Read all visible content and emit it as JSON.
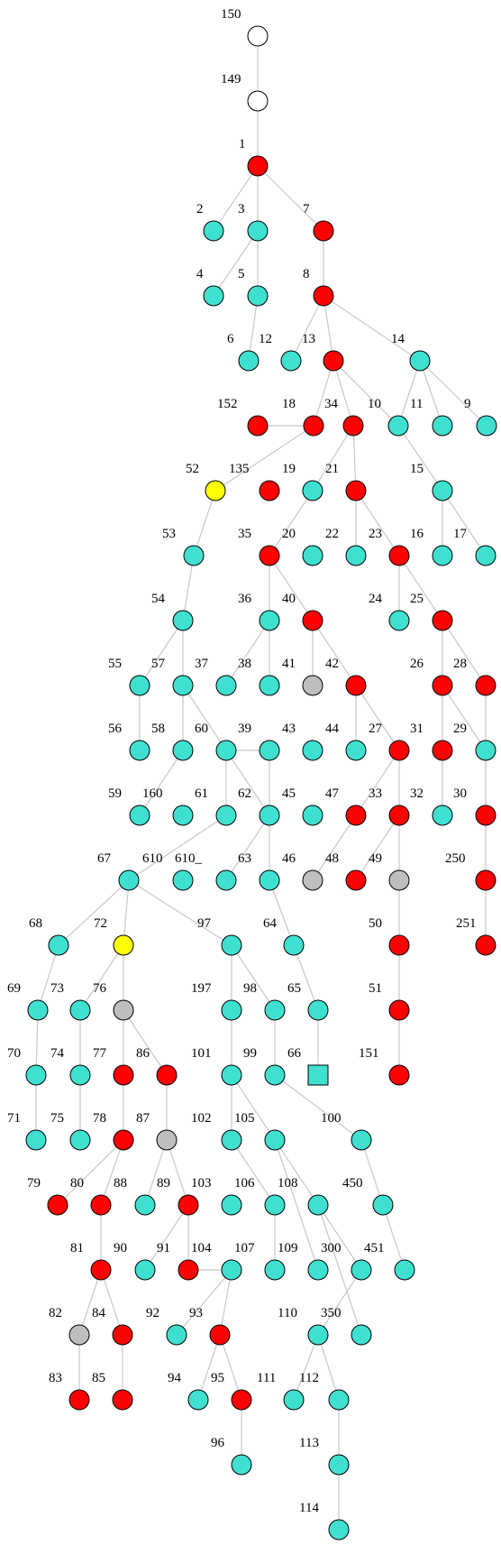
{
  "colors": {
    "red": "#ff0000",
    "turquoise": "#40e0d0",
    "gray": "#bebebe",
    "yellow": "#ffff00",
    "white": "#ffffff",
    "edge": "#c8c8c8"
  },
  "nodes": [
    {
      "id": "150",
      "color": "white"
    },
    {
      "id": "149",
      "color": "white"
    },
    {
      "id": "1",
      "color": "red"
    },
    {
      "id": "2",
      "color": "turquoise"
    },
    {
      "id": "3",
      "color": "turquoise"
    },
    {
      "id": "7",
      "color": "red"
    },
    {
      "id": "4",
      "color": "turquoise"
    },
    {
      "id": "5",
      "color": "turquoise"
    },
    {
      "id": "8",
      "color": "red"
    },
    {
      "id": "6",
      "color": "turquoise"
    },
    {
      "id": "12",
      "color": "turquoise"
    },
    {
      "id": "13",
      "color": "red"
    },
    {
      "id": "14",
      "color": "turquoise"
    },
    {
      "id": "152",
      "color": "red"
    },
    {
      "id": "18",
      "color": "red"
    },
    {
      "id": "34",
      "color": "turquoise"
    },
    {
      "id": "10",
      "color": "turquoise"
    },
    {
      "id": "11",
      "color": "turquoise"
    },
    {
      "id": "9",
      "color": "turquoise"
    },
    {
      "id": "52",
      "color": "yellow"
    },
    {
      "id": "135",
      "color": "red"
    },
    {
      "id": "19",
      "color": "turquoise"
    },
    {
      "id": "21",
      "color": "red"
    },
    {
      "id": "15",
      "color": "turquoise"
    },
    {
      "id": "53",
      "color": "turquoise"
    },
    {
      "id": "35",
      "color": "red"
    },
    {
      "id": "20",
      "color": "turquoise"
    },
    {
      "id": "22",
      "color": "turquoise"
    },
    {
      "id": "23",
      "color": "red"
    },
    {
      "id": "16",
      "color": "turquoise"
    },
    {
      "id": "17",
      "color": "turquoise"
    },
    {
      "id": "54",
      "color": "turquoise"
    },
    {
      "id": "36",
      "color": "turquoise"
    },
    {
      "id": "40",
      "color": "red"
    },
    {
      "id": "24",
      "color": "turquoise"
    },
    {
      "id": "25",
      "color": "red"
    },
    {
      "id": "55",
      "color": "turquoise"
    },
    {
      "id": "57",
      "color": "turquoise"
    },
    {
      "id": "37",
      "color": "turquoise"
    },
    {
      "id": "38",
      "color": "turquoise"
    },
    {
      "id": "41",
      "color": "gray"
    },
    {
      "id": "42",
      "color": "red"
    },
    {
      "id": "26",
      "color": "red"
    },
    {
      "id": "28",
      "color": "red"
    },
    {
      "id": "56",
      "color": "turquoise"
    },
    {
      "id": "58",
      "color": "turquoise"
    },
    {
      "id": "60",
      "color": "turquoise"
    },
    {
      "id": "39",
      "color": "turquoise"
    },
    {
      "id": "43",
      "color": "turquoise"
    },
    {
      "id": "44",
      "color": "red"
    },
    {
      "id": "27",
      "color": "red"
    },
    {
      "id": "31",
      "color": "turquoise"
    },
    {
      "id": "29",
      "color": "red"
    },
    {
      "id": "59",
      "color": "turquoise"
    },
    {
      "id": "160",
      "color": "turquoise"
    },
    {
      "id": "61",
      "color": "turquoise"
    },
    {
      "id": "62",
      "color": "turquoise"
    },
    {
      "id": "45",
      "color": "red"
    },
    {
      "id": "47",
      "color": "red"
    },
    {
      "id": "33",
      "color": "turquoise"
    },
    {
      "id": "32",
      "color": "turquoise"
    },
    {
      "id": "30",
      "color": "red"
    },
    {
      "id": "67",
      "color": "turquoise"
    },
    {
      "id": "610",
      "color": "turquoise"
    },
    {
      "id": "610_",
      "color": "turquoise"
    },
    {
      "id": "63",
      "color": "turquoise"
    },
    {
      "id": "46",
      "color": "gray"
    },
    {
      "id": "48",
      "color": "red"
    },
    {
      "id": "49",
      "color": "gray"
    },
    {
      "id": "250",
      "color": "red"
    },
    {
      "id": "68",
      "color": "turquoise"
    },
    {
      "id": "72",
      "color": "yellow"
    },
    {
      "id": "97",
      "color": "turquoise"
    },
    {
      "id": "64",
      "color": "turquoise"
    },
    {
      "id": "50",
      "color": "red"
    },
    {
      "id": "251",
      "color": "red"
    },
    {
      "id": "69",
      "color": "turquoise"
    },
    {
      "id": "73",
      "color": "turquoise"
    },
    {
      "id": "76",
      "color": "gray"
    },
    {
      "id": "197",
      "color": "turquoise"
    },
    {
      "id": "98",
      "color": "turquoise"
    },
    {
      "id": "65",
      "color": "turquoise"
    },
    {
      "id": "51",
      "color": "red"
    },
    {
      "id": "70",
      "color": "turquoise"
    },
    {
      "id": "74",
      "color": "turquoise"
    },
    {
      "id": "77",
      "color": "red"
    },
    {
      "id": "86",
      "color": "red"
    },
    {
      "id": "101",
      "color": "turquoise"
    },
    {
      "id": "99",
      "color": "turquoise"
    },
    {
      "id": "66",
      "color": "turquoise",
      "shape": "square"
    },
    {
      "id": "151",
      "color": "red"
    },
    {
      "id": "71",
      "color": "turquoise"
    },
    {
      "id": "75",
      "color": "turquoise"
    },
    {
      "id": "78",
      "color": "red"
    },
    {
      "id": "87",
      "color": "gray"
    },
    {
      "id": "102",
      "color": "turquoise"
    },
    {
      "id": "105",
      "color": "turquoise"
    },
    {
      "id": "100",
      "color": "turquoise"
    },
    {
      "id": "79",
      "color": "red"
    },
    {
      "id": "80",
      "color": "red"
    },
    {
      "id": "88",
      "color": "turquoise"
    },
    {
      "id": "89",
      "color": "red"
    },
    {
      "id": "103",
      "color": "turquoise"
    },
    {
      "id": "106",
      "color": "turquoise"
    },
    {
      "id": "108",
      "color": "turquoise"
    },
    {
      "id": "450",
      "color": "turquoise"
    },
    {
      "id": "81",
      "color": "red"
    },
    {
      "id": "90",
      "color": "turquoise"
    },
    {
      "id": "91",
      "color": "red"
    },
    {
      "id": "104",
      "color": "turquoise"
    },
    {
      "id": "107",
      "color": "turquoise"
    },
    {
      "id": "109",
      "color": "turquoise"
    },
    {
      "id": "300",
      "color": "turquoise"
    },
    {
      "id": "451",
      "color": "turquoise"
    },
    {
      "id": "82",
      "color": "gray"
    },
    {
      "id": "84",
      "color": "red"
    },
    {
      "id": "92",
      "color": "turquoise"
    },
    {
      "id": "93",
      "color": "red"
    },
    {
      "id": "110",
      "color": "turquoise"
    },
    {
      "id": "350",
      "color": "turquoise"
    },
    {
      "id": "83",
      "color": "red"
    },
    {
      "id": "85",
      "color": "red"
    },
    {
      "id": "94",
      "color": "turquoise"
    },
    {
      "id": "95",
      "color": "red"
    },
    {
      "id": "111",
      "color": "turquoise"
    },
    {
      "id": "112",
      "color": "turquoise"
    },
    {
      "id": "96",
      "color": "turquoise"
    },
    {
      "id": "113",
      "color": "turquoise"
    },
    {
      "id": "114",
      "color": "turquoise"
    }
  ],
  "edges": [
    [
      "150",
      "149"
    ],
    [
      "149",
      "1"
    ],
    [
      "1",
      "2"
    ],
    [
      "1",
      "3"
    ],
    [
      "1",
      "7"
    ],
    [
      "3",
      "4"
    ],
    [
      "3",
      "5"
    ],
    [
      "5",
      "6"
    ],
    [
      "7",
      "8"
    ],
    [
      "8",
      "12"
    ],
    [
      "8",
      "13"
    ],
    [
      "8",
      "14"
    ],
    [
      "14",
      "11"
    ],
    [
      "14",
      "9"
    ],
    [
      "14",
      "10"
    ],
    [
      "13",
      "152"
    ],
    [
      "13",
      "18"
    ],
    [
      "13",
      "34"
    ],
    [
      "13",
      "15"
    ],
    [
      "152",
      "52"
    ],
    [
      "52",
      "53"
    ],
    [
      "53",
      "54"
    ],
    [
      "54",
      "55"
    ],
    [
      "54",
      "57"
    ],
    [
      "55",
      "56"
    ],
    [
      "57",
      "58"
    ],
    [
      "57",
      "60"
    ],
    [
      "58",
      "59"
    ],
    [
      "60",
      "61"
    ],
    [
      "60",
      "62"
    ],
    [
      "60",
      "39"
    ],
    [
      "61",
      "67"
    ],
    [
      "62",
      "610_"
    ],
    [
      "39",
      "63"
    ],
    [
      "67",
      "68"
    ],
    [
      "67",
      "72"
    ],
    [
      "67",
      "97"
    ],
    [
      "68",
      "69"
    ],
    [
      "69",
      "70"
    ],
    [
      "70",
      "71"
    ],
    [
      "72",
      "76"
    ],
    [
      "76",
      "77"
    ],
    [
      "76",
      "86"
    ],
    [
      "86",
      "87"
    ],
    [
      "77",
      "78"
    ],
    [
      "78",
      "80"
    ],
    [
      "78",
      "79"
    ],
    [
      "80",
      "81"
    ],
    [
      "81",
      "82"
    ],
    [
      "81",
      "84"
    ],
    [
      "82",
      "83"
    ],
    [
      "84",
      "85"
    ],
    [
      "87",
      "88"
    ],
    [
      "87",
      "89"
    ],
    [
      "89",
      "91"
    ],
    [
      "91",
      "90"
    ],
    [
      "91",
      "104"
    ],
    [
      "104",
      "92"
    ],
    [
      "104",
      "93"
    ],
    [
      "93",
      "94"
    ],
    [
      "93",
      "95"
    ],
    [
      "95",
      "96"
    ],
    [
      "97",
      "197"
    ],
    [
      "97",
      "98"
    ],
    [
      "197",
      "101"
    ],
    [
      "98",
      "99"
    ],
    [
      "99",
      "100"
    ],
    [
      "101",
      "102"
    ],
    [
      "101",
      "105"
    ],
    [
      "102",
      "106"
    ],
    [
      "106",
      "107"
    ],
    [
      "105",
      "109"
    ],
    [
      "105",
      "108"
    ],
    [
      "108",
      "300"
    ],
    [
      "108",
      "350"
    ],
    [
      "300",
      "110"
    ],
    [
      "110",
      "111"
    ],
    [
      "110",
      "112"
    ],
    [
      "112",
      "113"
    ],
    [
      "113",
      "114"
    ],
    [
      "100",
      "450"
    ],
    [
      "450",
      "451"
    ],
    [
      "63",
      "64"
    ],
    [
      "64",
      "65"
    ],
    [
      "65",
      "66"
    ],
    [
      "18",
      "135"
    ],
    [
      "135",
      "35"
    ],
    [
      "35",
      "36"
    ],
    [
      "35",
      "40"
    ],
    [
      "36",
      "37"
    ],
    [
      "36",
      "38"
    ],
    [
      "38",
      "43"
    ],
    [
      "40",
      "41"
    ],
    [
      "40",
      "42"
    ],
    [
      "42",
      "44"
    ],
    [
      "42",
      "27"
    ],
    [
      "27",
      "47"
    ],
    [
      "27",
      "33"
    ],
    [
      "47",
      "46"
    ],
    [
      "33",
      "48"
    ],
    [
      "33",
      "49"
    ],
    [
      "49",
      "50"
    ],
    [
      "50",
      "51"
    ],
    [
      "51",
      "151"
    ],
    [
      "34",
      "19"
    ],
    [
      "34",
      "21"
    ],
    [
      "19",
      "20"
    ],
    [
      "21",
      "22"
    ],
    [
      "21",
      "23"
    ],
    [
      "23",
      "24"
    ],
    [
      "23",
      "25"
    ],
    [
      "25",
      "26"
    ],
    [
      "25",
      "28"
    ],
    [
      "26",
      "31"
    ],
    [
      "26",
      "29"
    ],
    [
      "31",
      "32"
    ],
    [
      "29",
      "30"
    ],
    [
      "28",
      "250"
    ],
    [
      "250",
      "251"
    ],
    [
      "251",
      "30_"
    ],
    [
      "15",
      "16"
    ],
    [
      "15",
      "17"
    ]
  ]
}
